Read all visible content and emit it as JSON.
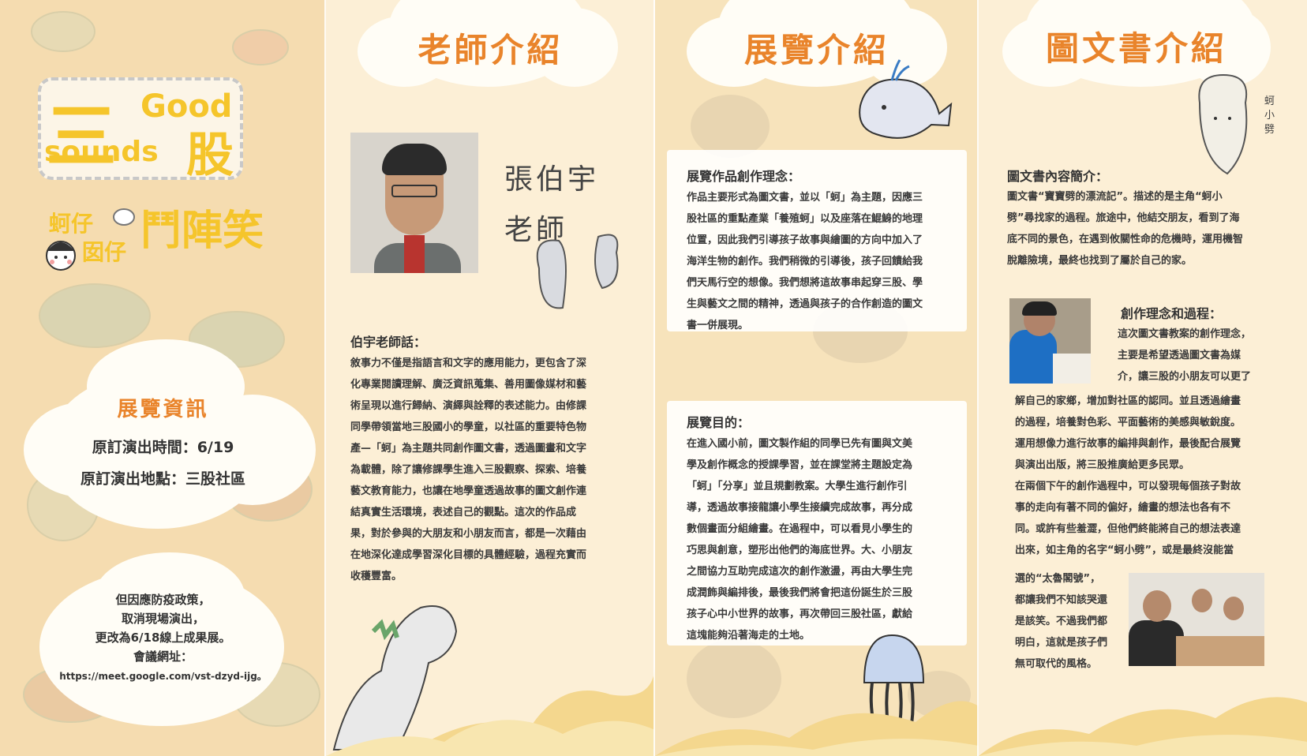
{
  "panel1": {
    "logo": {
      "line1_char": "三",
      "line1_word": "Good",
      "line2_word": "sounds",
      "line2_char": "股",
      "line3": "蚵仔",
      "line4": "囡仔",
      "line5": "鬥陣笑"
    },
    "info_title": "展覽資訊",
    "info_time": "原訂演出時間：6/19",
    "info_place": "原訂演出地點：三股社區",
    "notice_lines": [
      "但因應防疫政策，",
      "取消現場演出，",
      "更改為6/18線上成果展。",
      "會議網址："
    ],
    "meet_url": "https://meet.google.com/vst-dzyd-ijg。"
  },
  "panel2": {
    "title": "老師介紹",
    "teacher_name_line1": "張伯宇",
    "teacher_name_line2": "老師",
    "speech_heading": "伯宇老師話：",
    "speech_lines": [
      "敘事力不僅是指語言和文字的應用能力，更包含了深",
      "化專業閱讀理解、廣泛資訊蒐集、善用圖像媒材和藝",
      "術呈現以進行歸納、演繹與詮釋的表述能力。由修課",
      "同學帶領當地三股國小的學童，以社區的重要特色物",
      "產—「蚵」為主題共同創作圖文書，透過圖畫和文字",
      "為載體，除了讓修課學生進入三股觀察、探索、培養",
      "藝文教育能力，也讓在地學童透過故事的圖文創作連",
      "結真實生活環境，表述自己的觀點。這次的作品成",
      "果，對於參與的大朋友和小朋友而言，都是一次藉由",
      "在地深化達成學習深化目標的具體經驗，過程充實而",
      "收穫豐富。"
    ]
  },
  "panel3": {
    "title": "展覽介紹",
    "concept_heading": "展覽作品創作理念：",
    "concept_lines": [
      "作品主要形式為圖文書，並以「蚵」為主題，因應三",
      "股社區的重點產業「養殖蚵」以及座落在鯤鯓的地理",
      "位置，因此我們引導孩子故事與繪圖的方向中加入了",
      "海洋生物的創作。我們稍微的引導後，孩子回饋給我",
      "們天馬行空的想像。我們想將這故事串起穿三股、學",
      "生與藝文之間的精神，透過與孩子的合作創造的圖文",
      "書一併展現。"
    ],
    "purpose_heading": "展覽目的：",
    "purpose_lines": [
      "在進入國小前，圖文製作組的同學已先有圖與文美",
      "學及創作概念的授課學習，並在課堂將主題設定為",
      "「蚵」「分享」並且規劃教案。大學生進行創作引",
      "導，透過故事接龍讓小學生接續完成故事，再分成",
      "數個畫面分組繪畫。在過程中，可以看見小學生的",
      "巧思與創意，塑形出他們的海底世界。大、小朋友",
      "之間協力互助完成這次的創作激盪，再由大學生完",
      "成潤飾與編排後，最後我們將會把這份誕生於三股",
      "孩子心中小世界的故事，再次帶回三股社區，獻給",
      "這塊能夠沿著海走的土地。"
    ]
  },
  "panel4": {
    "title": "圖文書介紹",
    "side_label": "蚵小劈",
    "summary_heading": "圖文書內容簡介：",
    "summary_lines": [
      "圖文書“寶寶劈的漂流記”。描述的是主角“蚵小",
      "劈”尋找家的過程。旅途中，他結交朋友，看到了海",
      "底不同的景色，在遇到攸關性命的危機時，運用機智",
      "脫離險境，最終也找到了屬於自己的家。"
    ],
    "process_heading": "創作理念和過程：",
    "process_short_lines": [
      "這次圖文書教案的創作理念，",
      "主要是希望透過圖文書為媒",
      "介，讓三股的小朋友可以更了"
    ],
    "process_lines": [
      "解自己的家鄉，增加對社區的認同。並且透過繪畫",
      "的過程，培養對色彩、平面藝術的美感與敏銳度。",
      "運用想像力進行故事的編排與創作，最後配合展覽",
      "與演出出版，將三股推廣給更多民眾。",
      "在兩個下午的創作過程中，可以發現每個孩子對故",
      "事的走向有著不同的偏好，繪畫的想法也各有不",
      "同。或許有些羞澀，但他們終能將自己的想法表達",
      "出來，如主角的名字“蚵小劈”，或是最終沒能當"
    ],
    "process_tail_lines": [
      "選的“太魯閣號”，",
      "都讓我們不知該哭還",
      "是該笑。不過我們都",
      "明白，這就是孩子們",
      "無可取代的風格。"
    ]
  }
}
